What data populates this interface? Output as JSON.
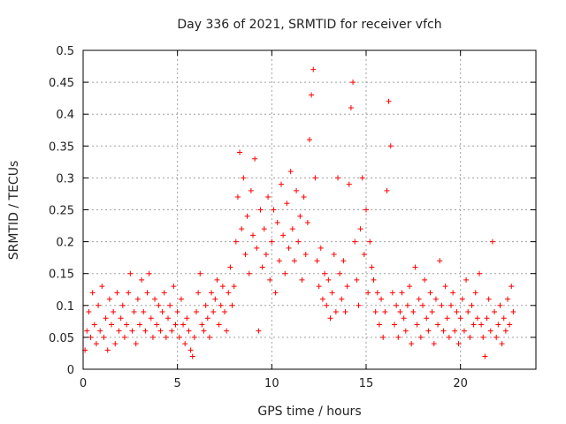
{
  "chart_data": {
    "type": "scatter",
    "title": "Day 336 of 2021, SRMTID for receiver vfch",
    "xlabel": "GPS time / hours",
    "ylabel": "SRMTID / TECUs",
    "xlim": [
      0,
      24
    ],
    "ylim": [
      0,
      0.5
    ],
    "xticks": [
      0,
      5,
      10,
      15,
      20
    ],
    "xtick_labels": [
      "0",
      "5",
      "10",
      "15",
      "20"
    ],
    "yticks": [
      0,
      0.05,
      0.1,
      0.15,
      0.2,
      0.25,
      0.3,
      0.35,
      0.4,
      0.45,
      0.5
    ],
    "ytick_labels": [
      "0",
      "0.05",
      "0.1",
      "0.15",
      "0.2",
      "0.25",
      "0.3",
      "0.35",
      "0.4",
      "0.45",
      "0.5"
    ],
    "grid": true,
    "marker": "+",
    "color": "#ff0000",
    "points": [
      [
        0.1,
        0.03
      ],
      [
        0.2,
        0.06
      ],
      [
        0.3,
        0.09
      ],
      [
        0.4,
        0.05
      ],
      [
        0.5,
        0.12
      ],
      [
        0.6,
        0.07
      ],
      [
        0.7,
        0.04
      ],
      [
        0.8,
        0.1
      ],
      [
        0.9,
        0.06
      ],
      [
        1.0,
        0.13
      ],
      [
        1.1,
        0.05
      ],
      [
        1.2,
        0.08
      ],
      [
        1.3,
        0.03
      ],
      [
        1.4,
        0.11
      ],
      [
        1.5,
        0.07
      ],
      [
        1.6,
        0.09
      ],
      [
        1.7,
        0.04
      ],
      [
        1.8,
        0.12
      ],
      [
        1.9,
        0.06
      ],
      [
        2.0,
        0.08
      ],
      [
        2.1,
        0.1
      ],
      [
        2.2,
        0.05
      ],
      [
        2.3,
        0.07
      ],
      [
        2.4,
        0.12
      ],
      [
        2.5,
        0.15
      ],
      [
        2.6,
        0.06
      ],
      [
        2.7,
        0.09
      ],
      [
        2.8,
        0.04
      ],
      [
        2.9,
        0.11
      ],
      [
        3.0,
        0.07
      ],
      [
        3.1,
        0.14
      ],
      [
        3.2,
        0.09
      ],
      [
        3.3,
        0.06
      ],
      [
        3.4,
        0.12
      ],
      [
        3.5,
        0.15
      ],
      [
        3.6,
        0.08
      ],
      [
        3.7,
        0.05
      ],
      [
        3.8,
        0.11
      ],
      [
        3.9,
        0.07
      ],
      [
        4.0,
        0.1
      ],
      [
        4.1,
        0.06
      ],
      [
        4.2,
        0.09
      ],
      [
        4.3,
        0.12
      ],
      [
        4.4,
        0.05
      ],
      [
        4.5,
        0.08
      ],
      [
        4.6,
        0.1
      ],
      [
        4.7,
        0.06
      ],
      [
        4.8,
        0.13
      ],
      [
        4.9,
        0.07
      ],
      [
        5.0,
        0.09
      ],
      [
        5.1,
        0.05
      ],
      [
        5.2,
        0.11
      ],
      [
        5.3,
        0.07
      ],
      [
        5.4,
        0.04
      ],
      [
        5.5,
        0.08
      ],
      [
        5.6,
        0.06
      ],
      [
        5.7,
        0.03
      ],
      [
        5.8,
        0.02
      ],
      [
        5.9,
        0.05
      ],
      [
        6.0,
        0.09
      ],
      [
        6.1,
        0.12
      ],
      [
        6.2,
        0.15
      ],
      [
        6.3,
        0.07
      ],
      [
        6.4,
        0.06
      ],
      [
        6.5,
        0.1
      ],
      [
        6.6,
        0.08
      ],
      [
        6.7,
        0.05
      ],
      [
        6.8,
        0.12
      ],
      [
        6.9,
        0.09
      ],
      [
        7.0,
        0.11
      ],
      [
        7.1,
        0.14
      ],
      [
        7.2,
        0.07
      ],
      [
        7.3,
        0.1
      ],
      [
        7.4,
        0.13
      ],
      [
        7.5,
        0.09
      ],
      [
        7.6,
        0.06
      ],
      [
        7.7,
        0.12
      ],
      [
        7.8,
        0.16
      ],
      [
        7.9,
        0.1
      ],
      [
        8.0,
        0.13
      ],
      [
        8.1,
        0.2
      ],
      [
        8.2,
        0.27
      ],
      [
        8.3,
        0.34
      ],
      [
        8.4,
        0.22
      ],
      [
        8.5,
        0.3
      ],
      [
        8.6,
        0.18
      ],
      [
        8.7,
        0.24
      ],
      [
        8.8,
        0.15
      ],
      [
        8.9,
        0.28
      ],
      [
        9.0,
        0.21
      ],
      [
        9.1,
        0.33
      ],
      [
        9.2,
        0.19
      ],
      [
        9.3,
        0.06
      ],
      [
        9.4,
        0.25
      ],
      [
        9.5,
        0.16
      ],
      [
        9.6,
        0.22
      ],
      [
        9.7,
        0.18
      ],
      [
        9.8,
        0.27
      ],
      [
        9.9,
        0.14
      ],
      [
        10.0,
        0.2
      ],
      [
        10.1,
        0.25
      ],
      [
        10.2,
        0.12
      ],
      [
        10.3,
        0.23
      ],
      [
        10.4,
        0.17
      ],
      [
        10.5,
        0.29
      ],
      [
        10.6,
        0.21
      ],
      [
        10.7,
        0.15
      ],
      [
        10.8,
        0.26
      ],
      [
        10.9,
        0.19
      ],
      [
        11.0,
        0.31
      ],
      [
        11.1,
        0.22
      ],
      [
        11.2,
        0.17
      ],
      [
        11.3,
        0.28
      ],
      [
        11.4,
        0.2
      ],
      [
        11.5,
        0.24
      ],
      [
        11.6,
        0.14
      ],
      [
        11.7,
        0.27
      ],
      [
        11.8,
        0.18
      ],
      [
        11.9,
        0.23
      ],
      [
        12.0,
        0.36
      ],
      [
        12.1,
        0.43
      ],
      [
        12.2,
        0.47
      ],
      [
        12.3,
        0.3
      ],
      [
        12.4,
        0.17
      ],
      [
        12.5,
        0.13
      ],
      [
        12.6,
        0.19
      ],
      [
        12.7,
        0.11
      ],
      [
        12.8,
        0.15
      ],
      [
        12.9,
        0.1
      ],
      [
        13.0,
        0.14
      ],
      [
        13.1,
        0.08
      ],
      [
        13.2,
        0.12
      ],
      [
        13.3,
        0.18
      ],
      [
        13.4,
        0.09
      ],
      [
        13.5,
        0.3
      ],
      [
        13.6,
        0.15
      ],
      [
        13.7,
        0.11
      ],
      [
        13.8,
        0.17
      ],
      [
        13.9,
        0.09
      ],
      [
        14.0,
        0.13
      ],
      [
        14.1,
        0.29
      ],
      [
        14.2,
        0.41
      ],
      [
        14.3,
        0.45
      ],
      [
        14.4,
        0.2
      ],
      [
        14.5,
        0.14
      ],
      [
        14.6,
        0.1
      ],
      [
        14.7,
        0.22
      ],
      [
        14.8,
        0.3
      ],
      [
        14.9,
        0.18
      ],
      [
        15.0,
        0.25
      ],
      [
        15.1,
        0.12
      ],
      [
        15.2,
        0.2
      ],
      [
        15.3,
        0.16
      ],
      [
        15.4,
        0.14
      ],
      [
        15.5,
        0.09
      ],
      [
        15.6,
        0.12
      ],
      [
        15.7,
        0.07
      ],
      [
        15.8,
        0.11
      ],
      [
        15.9,
        0.05
      ],
      [
        16.0,
        0.09
      ],
      [
        16.1,
        0.28
      ],
      [
        16.2,
        0.42
      ],
      [
        16.3,
        0.35
      ],
      [
        16.4,
        0.12
      ],
      [
        16.5,
        0.07
      ],
      [
        16.6,
        0.1
      ],
      [
        16.7,
        0.05
      ],
      [
        16.8,
        0.09
      ],
      [
        16.9,
        0.12
      ],
      [
        17.0,
        0.08
      ],
      [
        17.1,
        0.06
      ],
      [
        17.2,
        0.1
      ],
      [
        17.3,
        0.13
      ],
      [
        17.4,
        0.04
      ],
      [
        17.5,
        0.09
      ],
      [
        17.6,
        0.16
      ],
      [
        17.7,
        0.07
      ],
      [
        17.8,
        0.11
      ],
      [
        17.9,
        0.05
      ],
      [
        18.0,
        0.1
      ],
      [
        18.1,
        0.14
      ],
      [
        18.2,
        0.08
      ],
      [
        18.3,
        0.06
      ],
      [
        18.4,
        0.12
      ],
      [
        18.5,
        0.09
      ],
      [
        18.6,
        0.04
      ],
      [
        18.7,
        0.11
      ],
      [
        18.8,
        0.07
      ],
      [
        18.9,
        0.17
      ],
      [
        19.0,
        0.1
      ],
      [
        19.1,
        0.06
      ],
      [
        19.2,
        0.13
      ],
      [
        19.3,
        0.08
      ],
      [
        19.4,
        0.05
      ],
      [
        19.5,
        0.1
      ],
      [
        19.6,
        0.12
      ],
      [
        19.7,
        0.06
      ],
      [
        19.8,
        0.09
      ],
      [
        19.9,
        0.04
      ],
      [
        20.0,
        0.08
      ],
      [
        20.1,
        0.11
      ],
      [
        20.2,
        0.06
      ],
      [
        20.3,
        0.14
      ],
      [
        20.4,
        0.09
      ],
      [
        20.5,
        0.05
      ],
      [
        20.6,
        0.1
      ],
      [
        20.7,
        0.07
      ],
      [
        20.8,
        0.12
      ],
      [
        20.9,
        0.08
      ],
      [
        21.0,
        0.15
      ],
      [
        21.1,
        0.07
      ],
      [
        21.2,
        0.05
      ],
      [
        21.3,
        0.02
      ],
      [
        21.4,
        0.08
      ],
      [
        21.5,
        0.11
      ],
      [
        21.6,
        0.06
      ],
      [
        21.7,
        0.2
      ],
      [
        21.8,
        0.09
      ],
      [
        21.9,
        0.05
      ],
      [
        22.0,
        0.07
      ],
      [
        22.1,
        0.1
      ],
      [
        22.2,
        0.04
      ],
      [
        22.3,
        0.08
      ],
      [
        22.4,
        0.06
      ],
      [
        22.5,
        0.11
      ],
      [
        22.6,
        0.07
      ],
      [
        22.7,
        0.13
      ],
      [
        22.8,
        0.09
      ]
    ]
  }
}
